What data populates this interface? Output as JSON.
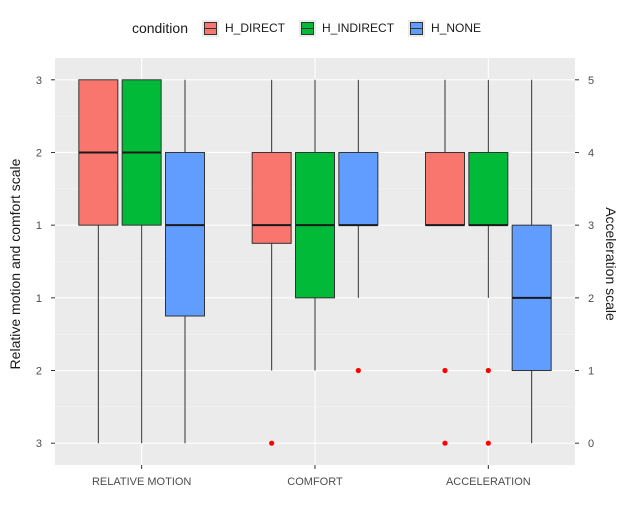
{
  "chart_data": {
    "type": "boxplot",
    "title": "",
    "legend": {
      "title": "condition",
      "position": "top",
      "entries": [
        {
          "name": "H_DIRECT",
          "color": "#F8766D"
        },
        {
          "name": "H_INDIRECT",
          "color": "#00BA38"
        },
        {
          "name": "H_NONE",
          "color": "#619CFF"
        }
      ]
    },
    "categories": [
      "RELATIVE MOTION",
      "COMFORT",
      "ACCELERATION"
    ],
    "ylabel_left": "Relative motion and comfort scale",
    "ylabel_right": "Acceleration scale",
    "left_ticks": [
      "3",
      "2",
      "1",
      "1",
      "2",
      "3"
    ],
    "right_ticks": [
      "5",
      "4",
      "3",
      "2",
      "1",
      "0"
    ],
    "ylim": [
      -0.3,
      5.3
    ],
    "grid": true,
    "outlier_color": "#ff0000",
    "series": [
      {
        "name": "H_DIRECT",
        "boxes": [
          {
            "category": "RELATIVE MOTION",
            "min": 0,
            "q1": 3,
            "median": 4,
            "q3": 5,
            "max": 5,
            "outliers": []
          },
          {
            "category": "COMFORT",
            "min": 1,
            "q1": 2.75,
            "median": 3,
            "q3": 4,
            "max": 5,
            "outliers": [
              0
            ]
          },
          {
            "category": "ACCELERATION",
            "min": 3,
            "q1": 3,
            "median": 3,
            "q3": 4,
            "max": 5,
            "outliers": [
              1,
              0
            ]
          }
        ]
      },
      {
        "name": "H_INDIRECT",
        "boxes": [
          {
            "category": "RELATIVE MOTION",
            "min": 0,
            "q1": 3,
            "median": 4,
            "q3": 5,
            "max": 5,
            "outliers": []
          },
          {
            "category": "COMFORT",
            "min": 1,
            "q1": 2,
            "median": 3,
            "q3": 4,
            "max": 5,
            "outliers": []
          },
          {
            "category": "ACCELERATION",
            "min": 2,
            "q1": 3,
            "median": 3,
            "q3": 4,
            "max": 5,
            "outliers": [
              1,
              0
            ]
          }
        ]
      },
      {
        "name": "H_NONE",
        "boxes": [
          {
            "category": "RELATIVE MOTION",
            "min": 0,
            "q1": 1.75,
            "median": 3,
            "q3": 4,
            "max": 5,
            "outliers": []
          },
          {
            "category": "COMFORT",
            "min": 2,
            "q1": 3,
            "median": 3,
            "q3": 4,
            "max": 5,
            "outliers": [
              1
            ]
          },
          {
            "category": "ACCELERATION",
            "min": 0,
            "q1": 1,
            "median": 2,
            "q3": 3,
            "max": 5,
            "outliers": []
          }
        ]
      }
    ]
  }
}
